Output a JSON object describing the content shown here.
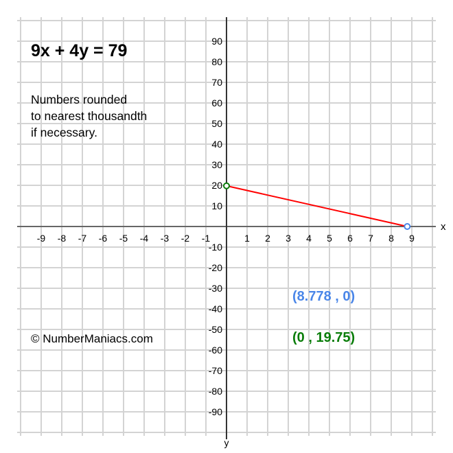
{
  "equation": "9x + 4y = 79",
  "note_lines": [
    "Numbers rounded",
    "to nearest thousandth",
    "if necessary."
  ],
  "copyright": "© NumberManiacs.com",
  "axes": {
    "x_label": "x",
    "y_label": "y",
    "x_range": [
      -10,
      10
    ],
    "y_range": [
      -100,
      100
    ],
    "x_ticks": [
      -9,
      -8,
      -7,
      -6,
      -5,
      -4,
      -3,
      -2,
      -1,
      1,
      2,
      3,
      4,
      5,
      6,
      7,
      8,
      9
    ],
    "y_ticks": [
      90,
      80,
      70,
      60,
      50,
      40,
      30,
      20,
      10,
      -10,
      -20,
      -30,
      -40,
      -50,
      -60,
      -70,
      -80,
      -90
    ]
  },
  "points": {
    "x_intercept": {
      "x": 8.778,
      "y": 0,
      "label": "(8.778 , 0)",
      "color": "#4a86e8"
    },
    "y_intercept": {
      "x": 0,
      "y": 19.75,
      "label": "(0 , 19.75)",
      "color": "#0a7d0a"
    }
  },
  "line_color": "#ff0000"
}
